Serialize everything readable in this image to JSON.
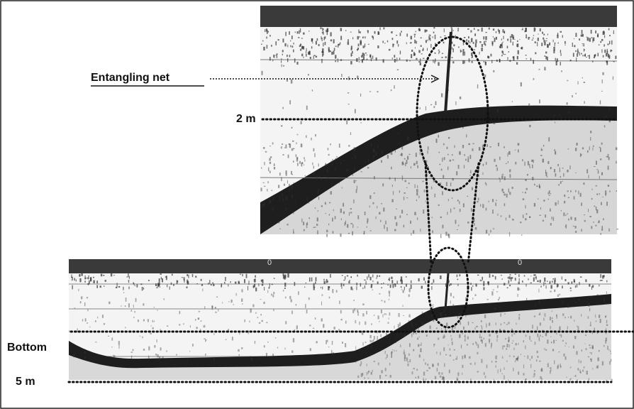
{
  "labels": {
    "net": "Entangling net",
    "depth_2m": "2 m",
    "bottom": "Bottom",
    "depth_5m": "5 m"
  },
  "markers": [
    "0",
    "0"
  ]
}
